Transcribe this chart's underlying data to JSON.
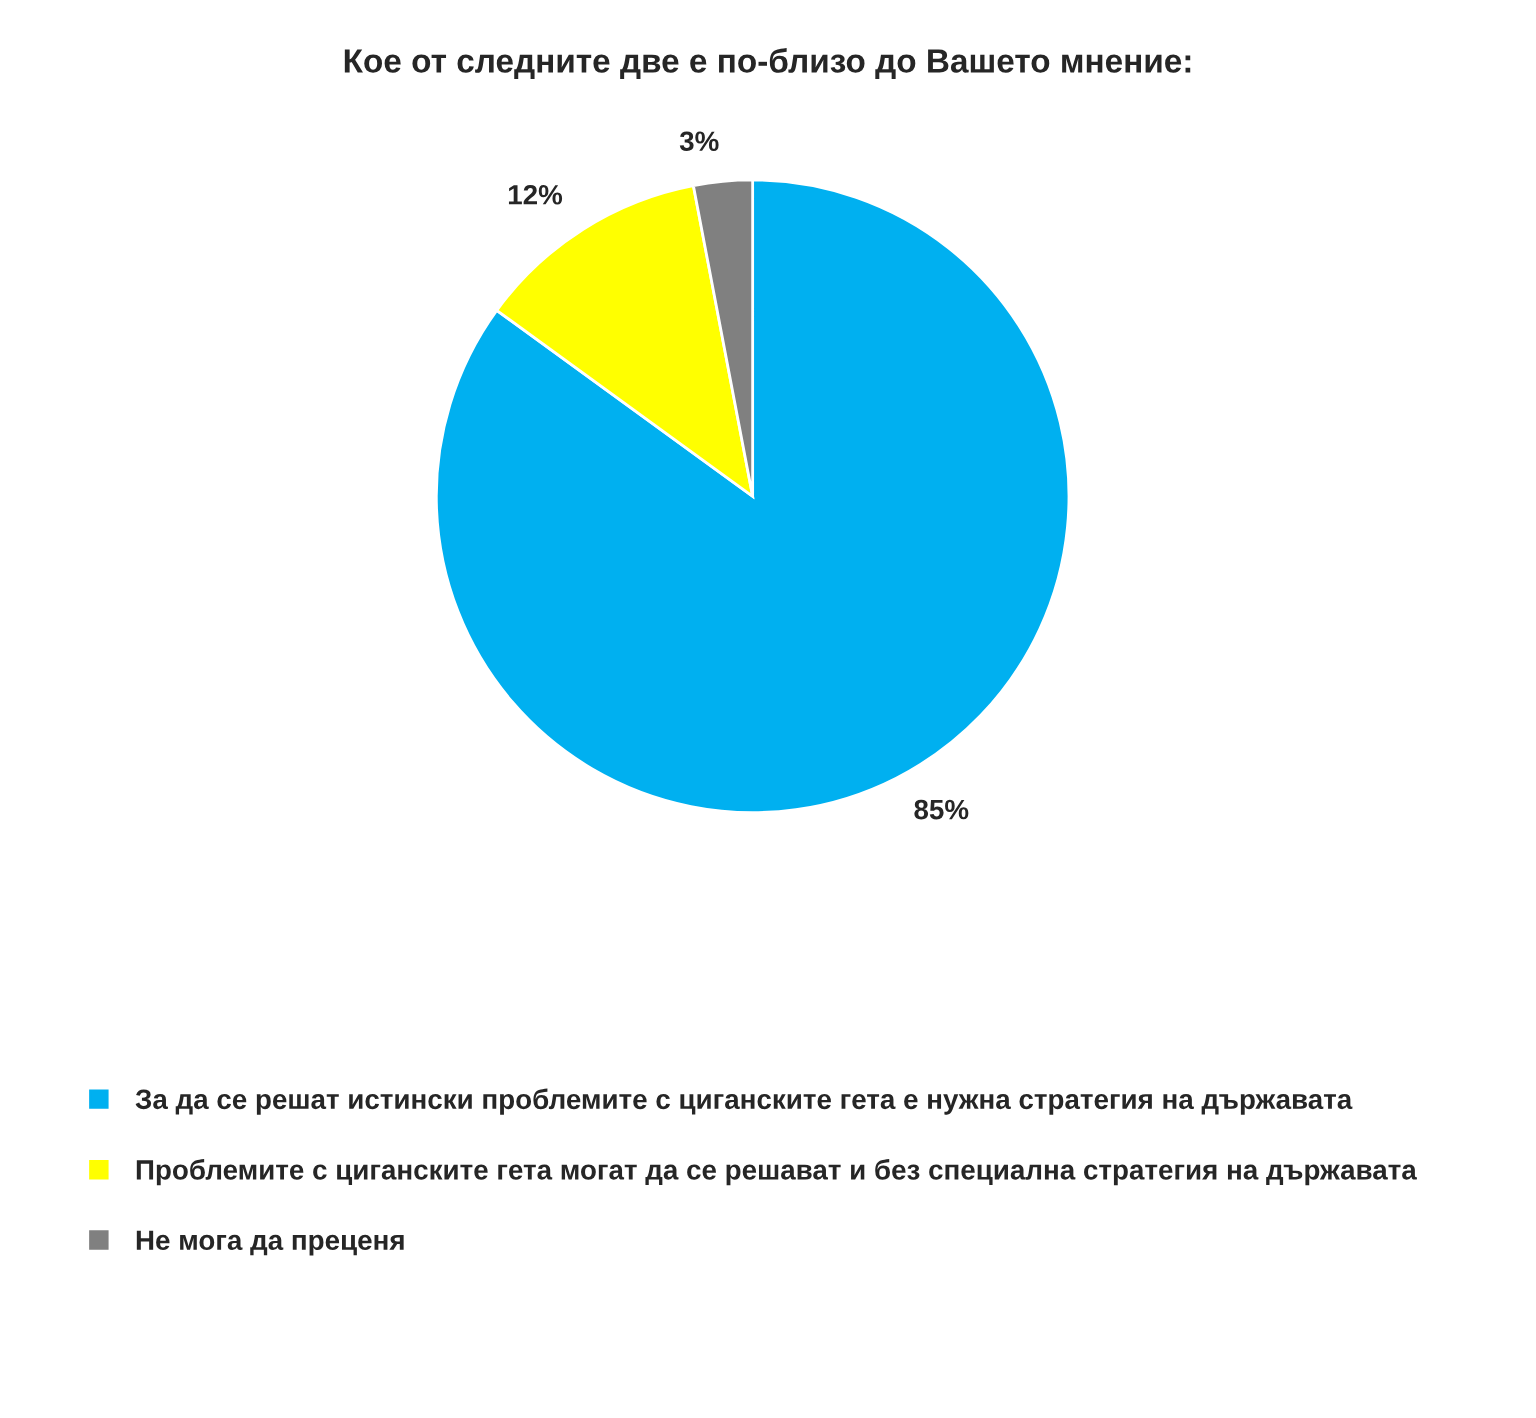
{
  "chart_data": {
    "type": "pie",
    "title": "Кое от следните две е по-близо до Вашето мнение:",
    "categories": [
      "За да се решат истински проблемите с циганските гета е нужна стратегия на държавата",
      "Проблемите с циганските гета могат да се решават и без специална стратегия на държавата",
      "Не мога да преценя"
    ],
    "values": [
      85,
      12,
      3
    ],
    "value_labels": [
      "85%",
      "12%",
      "3%"
    ],
    "colors": [
      "#00b0f0",
      "#ffff00",
      "#808080"
    ],
    "legend": "bottom"
  }
}
